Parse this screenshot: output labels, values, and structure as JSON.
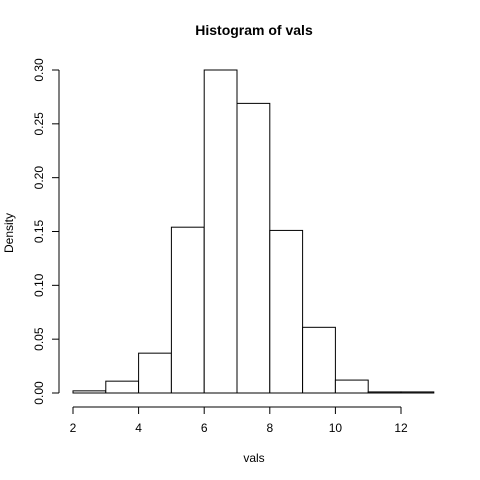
{
  "chart_data": {
    "type": "bar",
    "title": "Histogram of vals",
    "xlabel": "vals",
    "ylabel": "Density",
    "bins": [
      {
        "x0": 2,
        "x1": 3,
        "density": 0.002
      },
      {
        "x0": 3,
        "x1": 4,
        "density": 0.011
      },
      {
        "x0": 4,
        "x1": 5,
        "density": 0.037
      },
      {
        "x0": 5,
        "x1": 6,
        "density": 0.154
      },
      {
        "x0": 6,
        "x1": 7,
        "density": 0.3
      },
      {
        "x0": 7,
        "x1": 8,
        "density": 0.269
      },
      {
        "x0": 8,
        "x1": 9,
        "density": 0.151
      },
      {
        "x0": 9,
        "x1": 10,
        "density": 0.061
      },
      {
        "x0": 10,
        "x1": 11,
        "density": 0.012
      },
      {
        "x0": 11,
        "x1": 12,
        "density": 0.001
      },
      {
        "x0": 12,
        "x1": 13,
        "density": 0.001
      }
    ],
    "xlim": [
      2,
      13
    ],
    "ylim": [
      0,
      0.3
    ],
    "x_ticks": [
      "2",
      "4",
      "6",
      "8",
      "10",
      "12"
    ],
    "y_ticks": [
      "0.00",
      "0.05",
      "0.10",
      "0.15",
      "0.20",
      "0.25",
      "0.30"
    ],
    "grid": false,
    "legend": "none"
  }
}
